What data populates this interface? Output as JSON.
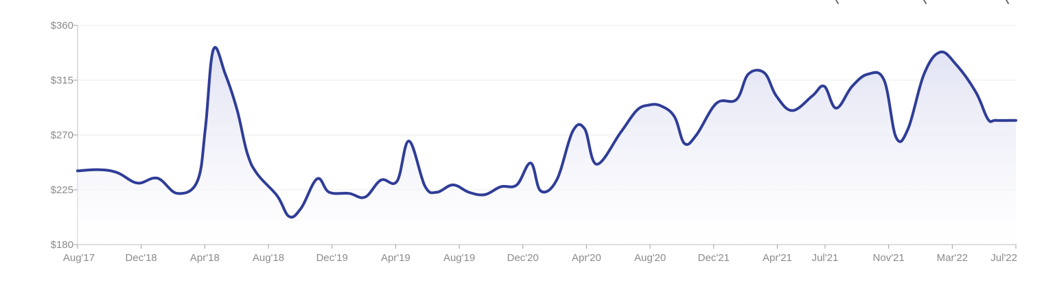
{
  "chart_data": {
    "type": "area",
    "title": "",
    "xlabel": "",
    "ylabel": "",
    "ylim": [
      180,
      360
    ],
    "y_ticks": [
      180,
      225,
      270,
      315,
      360
    ],
    "y_tick_labels": [
      "$180",
      "$225",
      "$270",
      "$315",
      "$360"
    ],
    "x_tick_labels": [
      "Aug'17",
      "Dec'18",
      "Apr'18",
      "Aug'18",
      "Dec'19",
      "Apr'19",
      "Aug'19",
      "Dec'20",
      "Apr'20",
      "Aug'20",
      "Dec'21",
      "Apr'21",
      "Jul'21",
      "Nov'21",
      "Mar'22",
      "Jul'22"
    ],
    "grid": true,
    "legend": "none",
    "colors": {
      "line": "#2f3d97",
      "fill_top": "#dfe1f2",
      "fill_bottom": "#ffffff"
    },
    "series": [
      {
        "values": [
          [
            0.0,
            240.5
          ],
          [
            0.55,
            241.5
          ],
          [
            1.0,
            239.0
          ],
          [
            1.5,
            230.5
          ],
          [
            2.0,
            234.5
          ],
          [
            2.5,
            222.0
          ],
          [
            3.0,
            232.0
          ],
          [
            3.2,
            275.0
          ],
          [
            3.4,
            340.0
          ],
          [
            3.7,
            320.0
          ],
          [
            4.0,
            290.0
          ],
          [
            4.25,
            255.0
          ],
          [
            4.5,
            238.0
          ],
          [
            5.0,
            220.0
          ],
          [
            5.3,
            203.0
          ],
          [
            5.6,
            210.0
          ],
          [
            6.0,
            234.0
          ],
          [
            6.3,
            223.0
          ],
          [
            6.8,
            222.0
          ],
          [
            7.2,
            219.0
          ],
          [
            7.6,
            233.0
          ],
          [
            8.0,
            232.0
          ],
          [
            8.3,
            265.0
          ],
          [
            8.7,
            228.0
          ],
          [
            9.0,
            223.0
          ],
          [
            9.4,
            229.0
          ],
          [
            9.8,
            223.0
          ],
          [
            10.2,
            221.0
          ],
          [
            10.6,
            227.5
          ],
          [
            11.0,
            229.0
          ],
          [
            11.35,
            247.0
          ],
          [
            11.6,
            224.0
          ],
          [
            12.0,
            233.0
          ],
          [
            12.4,
            273.0
          ],
          [
            12.7,
            275.0
          ],
          [
            13.0,
            246.0
          ],
          [
            13.6,
            272.0
          ],
          [
            14.0,
            290.0
          ],
          [
            14.3,
            294.5
          ],
          [
            14.6,
            294.0
          ],
          [
            14.95,
            285.0
          ],
          [
            15.2,
            263.0
          ],
          [
            15.5,
            270.0
          ],
          [
            16.0,
            296.0
          ],
          [
            16.5,
            299.0
          ],
          [
            16.8,
            320.0
          ],
          [
            17.2,
            321.0
          ],
          [
            17.5,
            302.0
          ],
          [
            17.9,
            290.0
          ],
          [
            18.4,
            302.0
          ],
          [
            18.7,
            310.0
          ],
          [
            19.0,
            292.0
          ],
          [
            19.4,
            310.0
          ],
          [
            19.8,
            320.0
          ],
          [
            20.2,
            315.0
          ],
          [
            20.5,
            268.0
          ],
          [
            20.8,
            275.0
          ],
          [
            21.2,
            320.0
          ],
          [
            21.6,
            338.0
          ],
          [
            22.0,
            328.0
          ],
          [
            22.5,
            305.0
          ],
          [
            22.8,
            283.0
          ],
          [
            23.0,
            282.0
          ],
          [
            23.5,
            282.0
          ]
        ]
      }
    ]
  }
}
